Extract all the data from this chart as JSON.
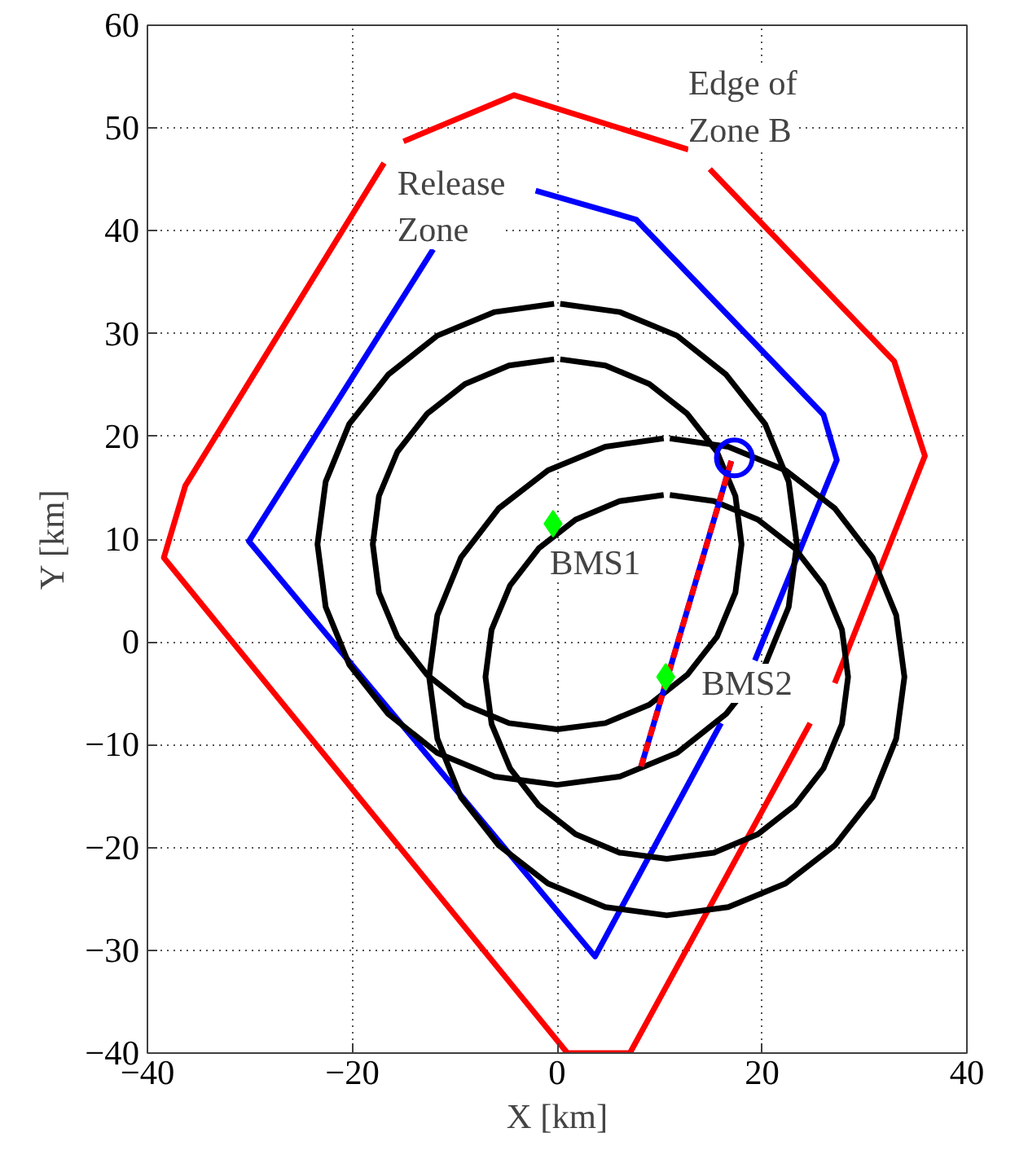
{
  "chart_data": {
    "type": "line",
    "xlabel": "X [km]",
    "ylabel": "Y [km]",
    "xlim": [
      -40,
      40
    ],
    "ylim": [
      -40,
      60
    ],
    "xticks": [
      -40,
      -20,
      0,
      20,
      40
    ],
    "yticks": [
      -40,
      -30,
      -20,
      -10,
      0,
      10,
      20,
      30,
      40,
      50,
      60
    ],
    "grid": true,
    "marker": "none",
    "line_style": "solid",
    "series": [
      {
        "color": "#ff0000",
        "x": [
          -15.0,
          -4.2,
          12.8,
          null,
          14.9,
          32.9,
          35.9,
          27.1,
          null,
          24.7,
          7.1,
          1.0,
          -38.4,
          -36.3,
          -16.9
        ],
        "values": [
          48.7,
          53.2,
          47.9,
          null,
          46.0,
          27.3,
          18.1,
          -4.0,
          null,
          -7.9,
          -40,
          -40,
          8.2,
          15.2,
          46.6
        ]
      },
      {
        "color": "#0000ff",
        "x": [
          -2.1,
          7.7,
          26.0,
          27.3,
          19.3,
          null,
          16.0,
          3.7,
          -30.1,
          -12.1
        ],
        "values": [
          43.9,
          41.1,
          22.1,
          17.7,
          -1.8,
          null,
          -7.9,
          -30.6,
          9.8,
          38.2
        ]
      },
      {
        "color": "#000000",
        "x": [
          -0.3,
          -4.7,
          -9,
          -12.7,
          -15.6,
          -17.4,
          -18,
          -17.4,
          -15.6,
          -12.7,
          -9,
          -4.7,
          0,
          4.7,
          9,
          12.7,
          15.6,
          17.4,
          18,
          17.4,
          15.6,
          12.7,
          9,
          4.7,
          0.3
        ],
        "values": [
          27.5,
          26.9,
          25.1,
          22.2,
          18.5,
          14.2,
          9.5,
          4.8,
          0.5,
          -3.2,
          -6.1,
          -7.9,
          -8.5,
          -7.9,
          -6.1,
          -3.2,
          0.5,
          4.8,
          9.5,
          14.2,
          18.5,
          22.2,
          25.1,
          26.9,
          27.5
        ]
      },
      {
        "color": "#000000",
        "x": [
          -0.3,
          -6.1,
          -11.7,
          -16.5,
          -20.3,
          -22.6,
          -23.4,
          -22.6,
          -20.3,
          -16.5,
          -11.7,
          -6.1,
          0,
          6.1,
          11.7,
          16.5,
          20.3,
          22.6,
          23.4,
          22.6,
          20.3,
          16.5,
          11.7,
          6.1,
          0.3
        ],
        "values": [
          32.9,
          32.1,
          29.8,
          26,
          21.2,
          15.6,
          9.5,
          3.4,
          -2.2,
          -7,
          -10.8,
          -13.1,
          -13.9,
          -13.1,
          -10.8,
          -7,
          -2.2,
          3.4,
          9.5,
          15.6,
          21.2,
          26,
          29.8,
          32.1,
          32.9
        ]
      },
      {
        "color": "#000000",
        "x": [
          10.4,
          6.1,
          1.8,
          -1.8,
          -4.6,
          -6.4,
          -7,
          -6.4,
          -4.6,
          -1.8,
          1.8,
          6.1,
          10.7,
          15.3,
          19.6,
          23.2,
          26,
          27.8,
          28.4,
          27.8,
          26,
          23.2,
          19.6,
          15.3,
          11.0
        ],
        "values": [
          14.3,
          13.7,
          11.9,
          9.1,
          5.5,
          1.2,
          -3.4,
          -8,
          -12.3,
          -15.9,
          -18.7,
          -20.5,
          -21.1,
          -20.5,
          -18.7,
          -15.9,
          -12.3,
          -8,
          -3.4,
          1.2,
          5.5,
          9.1,
          11.9,
          13.7,
          14.3
        ]
      },
      {
        "color": "#000000",
        "x": [
          10.4,
          4.7,
          -0.9,
          -5.7,
          -9.4,
          -11.7,
          -12.5,
          -11.7,
          -9.4,
          -5.7,
          -0.9,
          4.7,
          10.7,
          16.7,
          22.3,
          27.1,
          30.8,
          33.1,
          33.9,
          33.1,
          30.8,
          27.1,
          22.3,
          16.7,
          11.0
        ],
        "values": [
          19.8,
          19,
          16.7,
          13,
          8.2,
          2.6,
          -3.4,
          -9.4,
          -15.1,
          -19.8,
          -23.5,
          -25.8,
          -26.6,
          -25.8,
          -23.5,
          -19.8,
          -15.1,
          -9.4,
          -3.4,
          2.6,
          8.2,
          13,
          16.7,
          19,
          19.8
        ]
      },
      {
        "color": "#0000ff",
        "x": [
          17.0,
          8.2
        ],
        "values": [
          17.6,
          -12.1
        ]
      },
      {
        "color": "#ff0000",
        "line_style": "dashed",
        "x": [
          17.0,
          8.2
        ],
        "values": [
          17.6,
          -12.1
        ]
      },
      {
        "type": "scatter",
        "marker": "circle",
        "color": "#0000ff",
        "x": [
          17.3
        ],
        "values": [
          17.9
        ]
      },
      {
        "type": "scatter",
        "marker": "diamond",
        "color": "#00ff00",
        "x": [
          -0.4,
          10.6
        ],
        "values": [
          11.5,
          -3.4
        ]
      }
    ],
    "annotations": [
      {
        "text": "Release\nZone",
        "x": -12.1,
        "y": 38.2
      },
      {
        "text": "Edge of\nZone B",
        "x": 12.8,
        "y": 47.9
      },
      {
        "text": "BMS1",
        "x": -0.4,
        "y": 11.5
      },
      {
        "text": "BMS2",
        "x": 10.6,
        "y": -3.4
      }
    ]
  }
}
